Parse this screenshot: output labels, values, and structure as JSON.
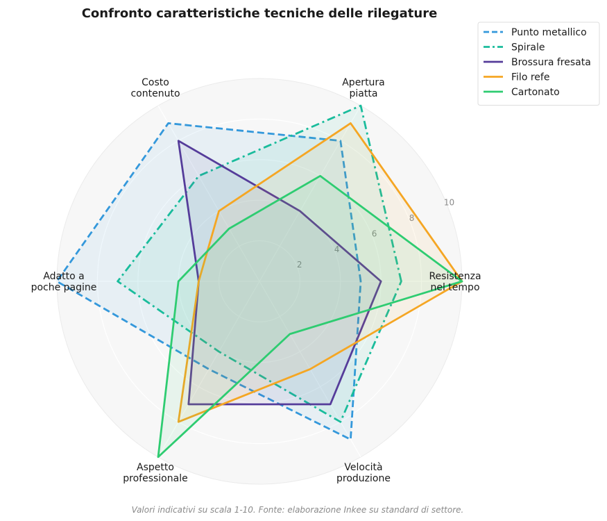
{
  "chart_data": {
    "type": "radar",
    "title": "Confronto caratteristiche tecniche delle rilegature",
    "footnote": "Valori indicativi su scala 1-10. Fonte: elaborazione Inkee su standard di settore.",
    "axes": [
      [
        "Resistenza",
        "nel tempo"
      ],
      [
        "Apertura",
        "piatta"
      ],
      [
        "Costo",
        "contenuto"
      ],
      [
        "Adatto a",
        "poche pagine"
      ],
      [
        "Aspetto",
        "professionale"
      ],
      [
        "Velocità",
        "produzione"
      ]
    ],
    "range": [
      0,
      10
    ],
    "ticks": [
      2,
      4,
      6,
      8,
      10
    ],
    "grid": true,
    "legend_position": "top-right",
    "series": [
      {
        "name": "Punto metallico",
        "values": [
          5,
          8,
          9,
          10,
          5,
          9
        ],
        "color": "#3498db",
        "dash": "dashed"
      },
      {
        "name": "Spirale",
        "values": [
          7,
          10,
          6,
          7,
          4,
          8
        ],
        "color": "#1abc9c",
        "dash": "dashdot"
      },
      {
        "name": "Brossura fresata",
        "values": [
          6,
          4,
          8,
          3,
          7,
          7
        ],
        "color": "#553c9a",
        "dash": "solid"
      },
      {
        "name": "Filo refe",
        "values": [
          10,
          9,
          4,
          3,
          8,
          5
        ],
        "color": "#f5a623",
        "dash": "solid"
      },
      {
        "name": "Cartonato",
        "values": [
          10,
          6,
          3,
          4,
          10,
          3
        ],
        "color": "#2ecc71",
        "dash": "solid"
      }
    ]
  }
}
